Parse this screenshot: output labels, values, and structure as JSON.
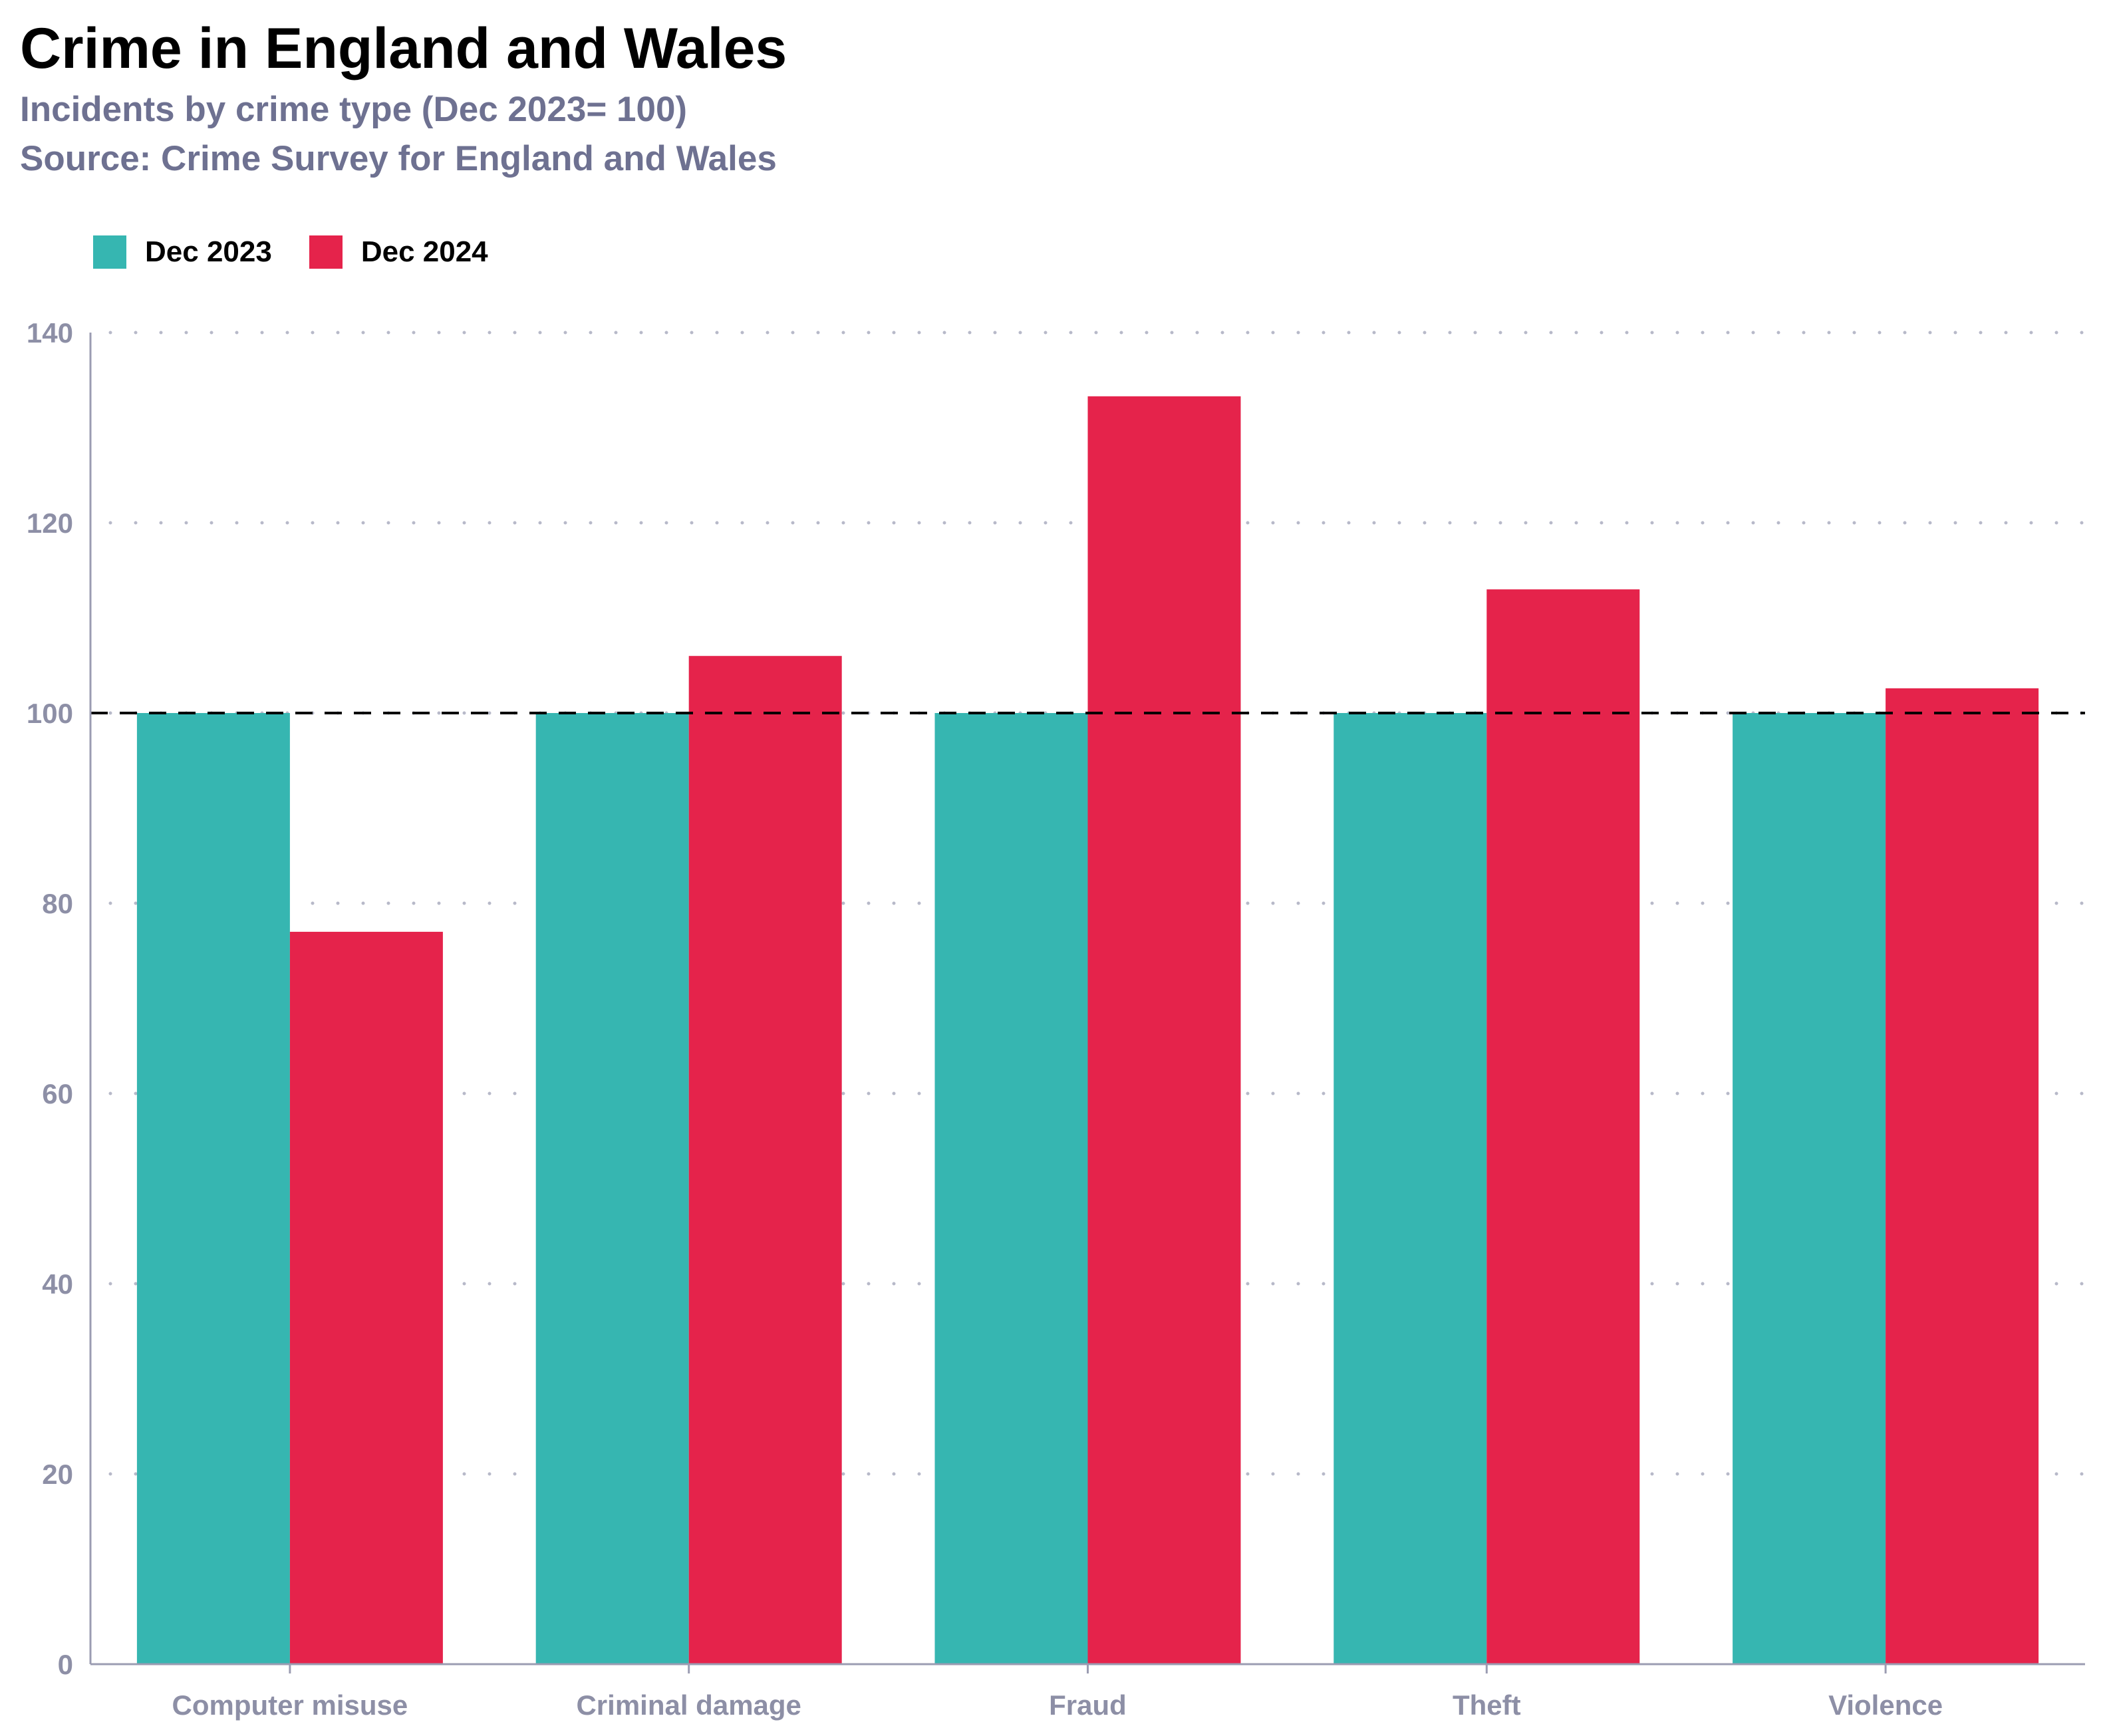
{
  "title": "Crime in England and Wales",
  "subtitle": "Incidents by crime type (Dec 2023= 100)",
  "source": "Source: Crime Survey for England and Wales",
  "colors": {
    "dec2023": "#36b6b1",
    "dec2024": "#e5234b",
    "axis": "#9b9cb2",
    "grid": "#b7b9c9",
    "reference": "#000000"
  },
  "chart_data": {
    "type": "bar",
    "categories": [
      "Computer misuse",
      "Criminal damage",
      "Fraud",
      "Theft",
      "Violence"
    ],
    "series": [
      {
        "name": "Dec 2023",
        "values": [
          100,
          100,
          100,
          100,
          100
        ]
      },
      {
        "name": "Dec 2024",
        "values": [
          77,
          106,
          133.3,
          113,
          102.6
        ]
      }
    ],
    "ylim": [
      0,
      140
    ],
    "yticks": [
      0,
      20,
      40,
      60,
      80,
      100,
      120,
      140
    ],
    "reference_line": 100,
    "grid": true,
    "legend_position": "top-left",
    "xlabel": "",
    "ylabel": ""
  }
}
